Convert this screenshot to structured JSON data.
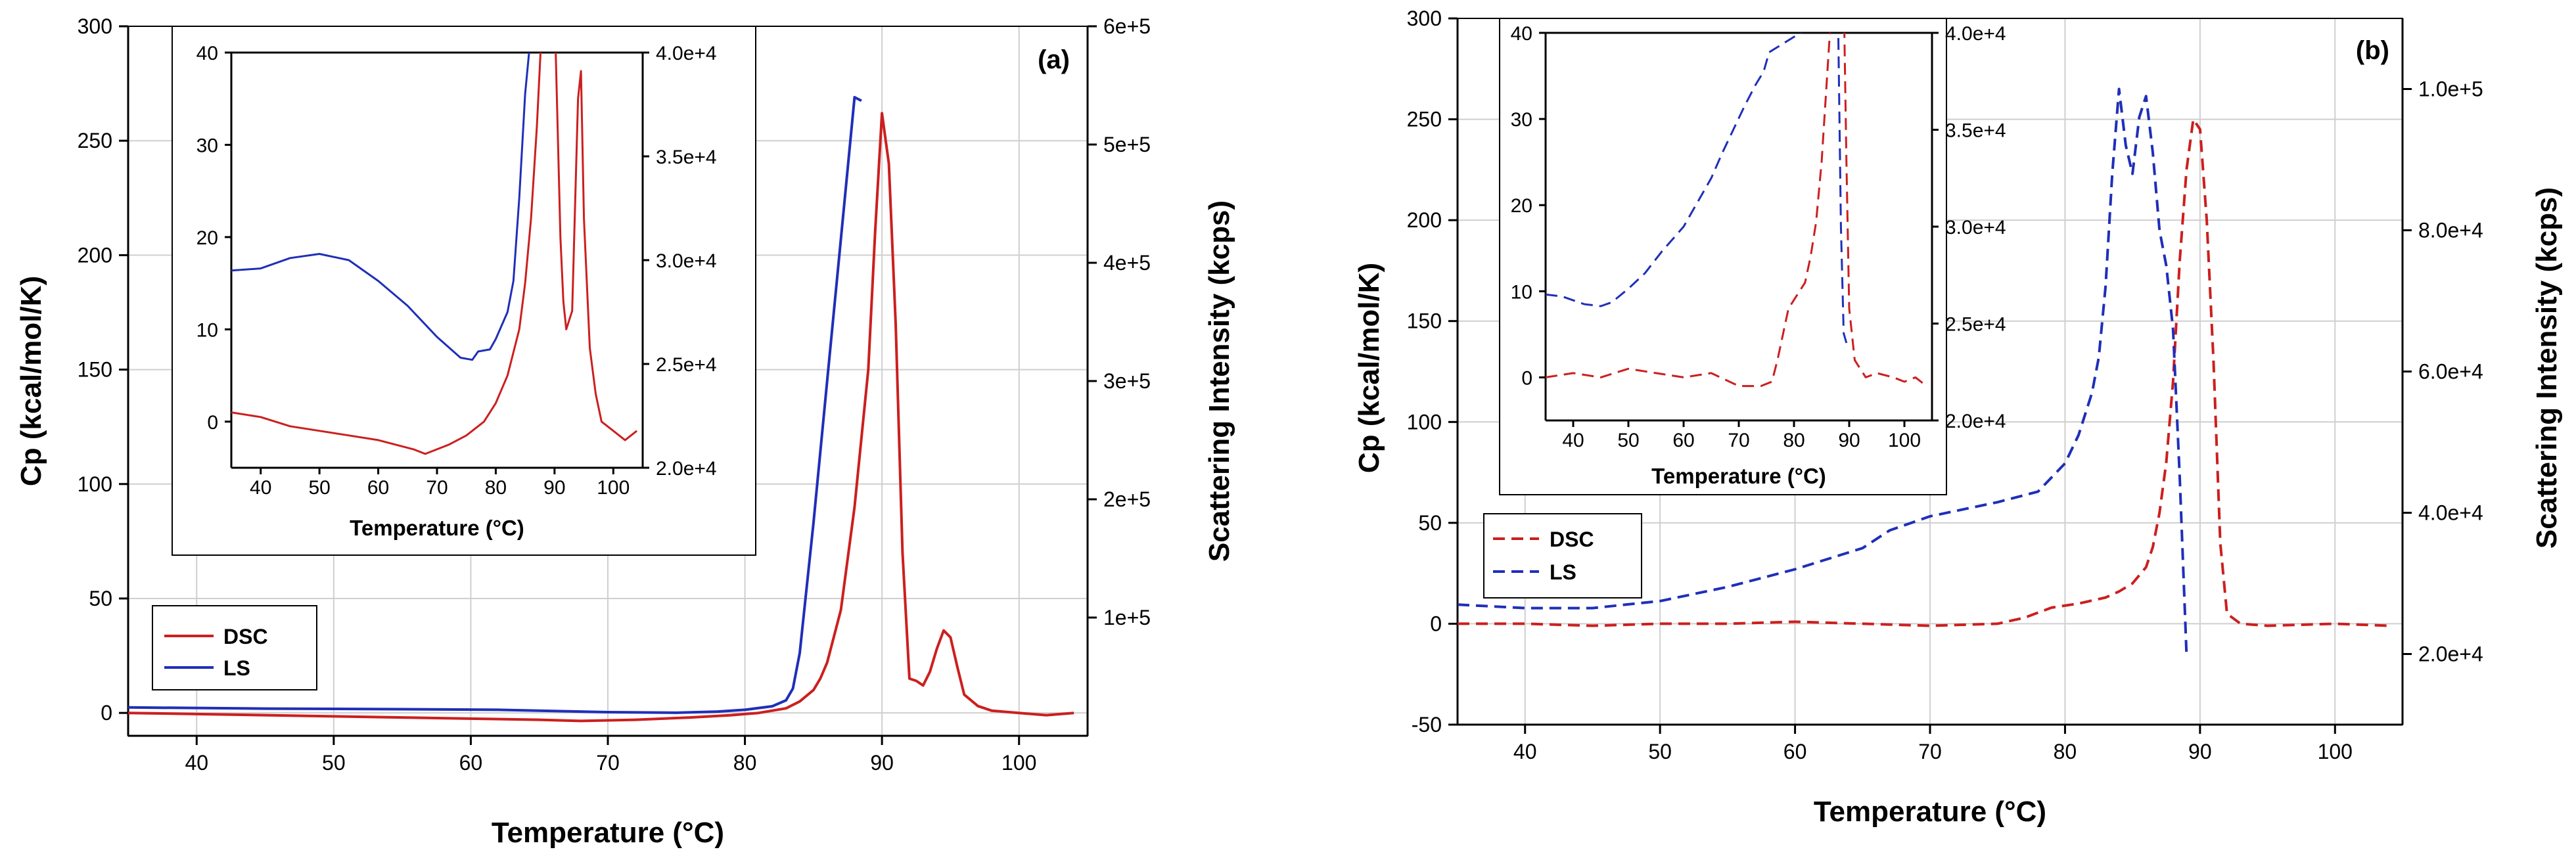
{
  "chart_data": [
    {
      "id": "a",
      "type": "line",
      "panel_label": "(a)",
      "xlabel": "Temperature (°C)",
      "ylabel": "Cp (kcal/mol/K)",
      "y2label": "Scattering Intensity (kcps)",
      "xlim": [
        35,
        105
      ],
      "ylim": [
        -10,
        300
      ],
      "y2lim": [
        0,
        600000
      ],
      "xticks": [
        40,
        50,
        60,
        70,
        80,
        90,
        100
      ],
      "yticks": [
        0,
        50,
        100,
        150,
        200,
        250,
        300
      ],
      "y2ticks": [
        100000,
        200000,
        300000,
        400000,
        500000,
        600000
      ],
      "y2ticklabels": [
        "1e+5",
        "2e+5",
        "3e+5",
        "4e+5",
        "5e+5",
        "6e+5"
      ],
      "grid": true,
      "legend": {
        "position": "lower-left",
        "entries": [
          "DSC",
          "LS"
        ]
      },
      "series": [
        {
          "name": "DSC",
          "axis": "left",
          "color": "#cc1f1f",
          "dash": false,
          "x": [
            35,
            40,
            45,
            50,
            55,
            60,
            65,
            68,
            72,
            76,
            79,
            81,
            83,
            84,
            85,
            85.5,
            86,
            87,
            88,
            89,
            89.5,
            90,
            90.5,
            91,
            91.5,
            92,
            92.5,
            93,
            93.5,
            94,
            94.5,
            95,
            95.5,
            96,
            97,
            98,
            100,
            102,
            104
          ],
          "y": [
            0,
            -0.5,
            -1,
            -1.5,
            -2,
            -2.5,
            -3,
            -3.5,
            -3,
            -2,
            -1,
            0,
            2,
            5,
            10,
            15,
            22,
            45,
            90,
            150,
            210,
            262,
            240,
            170,
            70,
            15,
            14,
            12,
            18,
            28,
            36,
            33,
            20,
            8,
            3,
            1,
            0,
            -1,
            0
          ]
        },
        {
          "name": "LS",
          "axis": "right",
          "color": "#1f2fb8",
          "dash": false,
          "x": [
            35,
            45,
            55,
            62,
            70,
            75,
            78,
            80,
            82,
            83,
            83.5,
            84,
            85,
            86,
            87,
            87.5,
            88,
            88.5
          ],
          "y": [
            24000,
            23000,
            22500,
            22000,
            20000,
            19500,
            20500,
            22000,
            25000,
            30000,
            40000,
            70000,
            180000,
            300000,
            420000,
            480000,
            540000,
            537000
          ]
        }
      ],
      "inset": {
        "xlabel": "Temperature (°C)",
        "xlim": [
          35,
          105
        ],
        "ylim": [
          -5,
          40
        ],
        "y2lim": [
          20000,
          40000
        ],
        "xticks": [
          40,
          50,
          60,
          70,
          80,
          90,
          100
        ],
        "yticks": [
          0,
          10,
          20,
          30,
          40
        ],
        "y2ticks": [
          20000,
          25000,
          30000,
          35000,
          40000
        ],
        "y2ticklabels": [
          "2.0e+4",
          "2.5e+4",
          "3.0e+4",
          "3.5e+4",
          "4.0e+4"
        ],
        "series": [
          {
            "name": "DSC",
            "axis": "left",
            "color": "#cc1f1f",
            "dash": false,
            "x": [
              35,
              40,
              45,
              50,
              55,
              60,
              63,
              66,
              68,
              70,
              72,
              75,
              78,
              80,
              82,
              84,
              85,
              86,
              87,
              88,
              89,
              90,
              91,
              91.5,
              92,
              93,
              94,
              94.5,
              95,
              96,
              97,
              98,
              100,
              102,
              104
            ],
            "y": [
              1,
              0.5,
              -0.5,
              -1,
              -1.5,
              -2,
              -2.5,
              -3,
              -3.5,
              -3,
              -2.5,
              -1.5,
              0,
              2,
              5,
              10,
              15,
              22,
              32,
              45,
              45,
              45,
              20,
              13,
              10,
              12,
              35,
              38,
              22,
              8,
              3,
              0,
              -1,
              -2,
              -1
            ]
          },
          {
            "name": "LS",
            "axis": "right",
            "color": "#1f2fb8",
            "dash": false,
            "x": [
              35,
              40,
              45,
              50,
              55,
              60,
              65,
              70,
              74,
              76,
              77,
              79,
              80,
              82,
              83,
              84,
              85,
              86
            ],
            "y": [
              29500,
              29600,
              30100,
              30300,
              30000,
              29000,
              27800,
              26300,
              25300,
              25200,
              25600,
              25700,
              26200,
              27500,
              29000,
              33000,
              38000,
              41000
            ]
          }
        ]
      }
    },
    {
      "id": "b",
      "type": "line",
      "panel_label": "(b)",
      "xlabel": "Temperature (°C)",
      "ylabel": "Cp (kcal/mol/K)",
      "y2label": "Scattering Intensity (kcps)",
      "xlim": [
        35,
        105
      ],
      "ylim": [
        -50,
        300
      ],
      "y2lim": [
        10000,
        110000
      ],
      "xticks": [
        40,
        50,
        60,
        70,
        80,
        90,
        100
      ],
      "yticks": [
        -50,
        0,
        50,
        100,
        150,
        200,
        250,
        300
      ],
      "y2ticks": [
        20000,
        40000,
        60000,
        80000,
        100000
      ],
      "y2ticklabels": [
        "2.0e+4",
        "4.0e+4",
        "6.0e+4",
        "8.0e+4",
        "1.0e+5"
      ],
      "grid": true,
      "legend": {
        "position": "lower-left",
        "entries": [
          "DSC",
          "LS"
        ]
      },
      "series": [
        {
          "name": "DSC",
          "axis": "left",
          "color": "#cc1f1f",
          "dash": true,
          "x": [
            35,
            40,
            45,
            50,
            55,
            60,
            65,
            70,
            75,
            77,
            79,
            81,
            83,
            84,
            85,
            86,
            86.5,
            87,
            87.5,
            88,
            88.5,
            89,
            89.5,
            90,
            90.5,
            91,
            91.5,
            92,
            93,
            95,
            100,
            104
          ],
          "y": [
            0,
            0,
            -1,
            0,
            0,
            1,
            0,
            -1,
            0,
            3,
            8,
            10,
            13,
            16,
            20,
            28,
            38,
            55,
            80,
            120,
            180,
            225,
            250,
            245,
            200,
            130,
            40,
            5,
            0,
            -1,
            0,
            -1
          ]
        },
        {
          "name": "LS",
          "axis": "right",
          "color": "#1f2fb8",
          "dash": true,
          "x": [
            35,
            40,
            45,
            50,
            55,
            60,
            65,
            67,
            70,
            75,
            78,
            80,
            81,
            82,
            82.5,
            83,
            83.5,
            84,
            84.5,
            85,
            85.5,
            86,
            86.5,
            87,
            87.5,
            88,
            88.5,
            89
          ],
          "y": [
            27000,
            26500,
            26500,
            27500,
            29500,
            32000,
            35000,
            37500,
            39500,
            41500,
            43000,
            47000,
            51000,
            57000,
            62000,
            72000,
            88000,
            100000,
            92000,
            88000,
            96000,
            99000,
            91000,
            80000,
            75000,
            66000,
            45000,
            20000
          ]
        }
      ],
      "inset": {
        "xlabel": "Temperature (°C)",
        "xlim": [
          35,
          105
        ],
        "ylim": [
          -5,
          40
        ],
        "y2lim": [
          20000,
          40000
        ],
        "xticks": [
          40,
          50,
          60,
          70,
          80,
          90,
          100
        ],
        "yticks": [
          0,
          10,
          20,
          30,
          40
        ],
        "y2ticks": [
          20000,
          25000,
          30000,
          35000,
          40000
        ],
        "y2ticklabels": [
          "2.0e+4",
          "2.5e+4",
          "3.0e+4",
          "3.5e+4",
          "4.0e+4"
        ],
        "series": [
          {
            "name": "DSC",
            "axis": "left",
            "color": "#cc1f1f",
            "dash": true,
            "x": [
              35,
              40,
              45,
              50,
              55,
              60,
              65,
              70,
              74,
              76,
              77,
              78,
              79,
              80,
              81,
              82,
              83,
              84,
              85,
              86,
              87,
              87.5,
              88,
              88.5,
              89,
              89.5,
              90,
              91,
              93,
              95,
              98,
              100,
              102,
              104
            ],
            "y": [
              0,
              0.5,
              0,
              1,
              0.5,
              0,
              0.5,
              -1,
              -1,
              -0.5,
              2,
              5,
              8,
              9,
              10,
              11,
              14,
              18,
              25,
              35,
              45,
              45,
              45,
              45,
              45,
              25,
              8,
              2,
              0,
              0.5,
              0,
              -0.5,
              0,
              -1
            ]
          },
          {
            "name": "LS",
            "axis": "right",
            "color": "#1f2fb8",
            "dash": true,
            "x": [
              35,
              38,
              42,
              45,
              47,
              50,
              53,
              56,
              60,
              63,
              65,
              67,
              69,
              71,
              73,
              74.5,
              75.5,
              84,
              85,
              88,
              88.5,
              89,
              89.5
            ],
            "y": [
              26500,
              26400,
              26000,
              25900,
              26100,
              26800,
              27600,
              28700,
              30000,
              31500,
              32500,
              33800,
              35000,
              36200,
              37300,
              38000,
              39000,
              40500,
              40500,
              40500,
              30000,
              24500,
              24000
            ]
          }
        ]
      }
    }
  ]
}
